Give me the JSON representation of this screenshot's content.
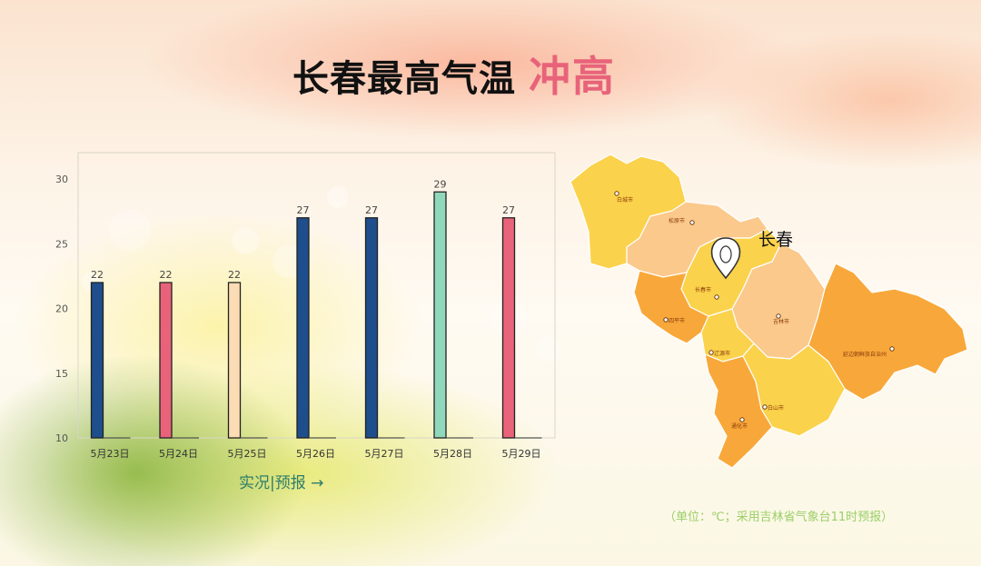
{
  "title": {
    "main": "长春最高气温",
    "accent": "冲高"
  },
  "chart_data": {
    "type": "bar",
    "categories": [
      "5月23日",
      "5月24日",
      "5月25日",
      "5月26日",
      "5月27日",
      "5月28日",
      "5月29日"
    ],
    "values": [
      22,
      22,
      22,
      27,
      27,
      29,
      27
    ],
    "colors": [
      "#1f4e8c",
      "#e8637a",
      "#fbdcb4",
      "#1f4e8c",
      "#1f4e8c",
      "#8fd8bb",
      "#e8637a"
    ],
    "yticks": [
      10,
      15,
      20,
      25,
      30
    ],
    "ylim": [
      10,
      30
    ],
    "title": "",
    "xlabel": "",
    "ylabel": ""
  },
  "nav": {
    "label": "实况|预报 →"
  },
  "note": "（单位：℃；采用吉林省气象台11时预报）",
  "map": {
    "highlight_label": "长春",
    "cities": [
      "白城市",
      "松原市",
      "长春市",
      "吉林市",
      "四平市",
      "辽源市",
      "白山市",
      "通化市",
      "延边朝鲜族自治州"
    ],
    "colors": {
      "light_yellow": "#fbd24b",
      "peach": "#fbc98c",
      "orange": "#f8a83a"
    }
  }
}
